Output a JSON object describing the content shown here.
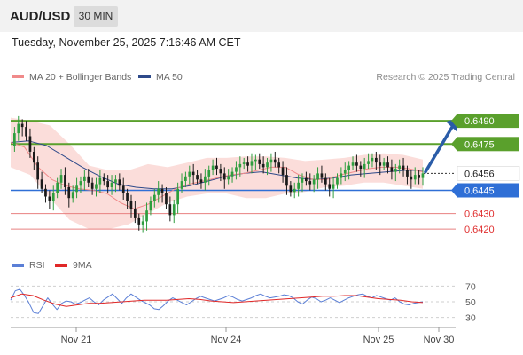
{
  "header": {
    "symbol": "AUD/USD",
    "timeframe": "30 MIN"
  },
  "datetime": "Tuesday, November 25, 2025 7:16:46 AM CET",
  "legend": {
    "ma20_label": "MA 20 + Bollinger Bands",
    "ma50_label": "MA 50",
    "rsi_label": "RSI",
    "rsi_ma_label": "9MA"
  },
  "credit": "Research © 2025 Trading Central",
  "colors": {
    "ma20": "#f08a8a",
    "ma50": "#2e4a8a",
    "bollinger_fill": "#fbd9d6",
    "resistance": "#5aa02c",
    "support": "#2f6fd6",
    "support_red": "#e88080",
    "bull": "#2e9e3e",
    "bear": "#1a1a1a",
    "arrow": "#2a5ca8",
    "rsi": "#5b7fd6",
    "rsi_ma": "#e02828"
  },
  "chart_data": [
    {
      "type": "candlestick",
      "title": "AUD/USD",
      "timeframe": "30 MIN",
      "ylim": [
        0.6412,
        0.6505
      ],
      "x_ticks": [
        "Nov 21",
        "Nov 24",
        "Nov 25",
        "Nov 30"
      ],
      "levels": [
        {
          "value": 0.649,
          "label": "0.6490",
          "kind": "resistance"
        },
        {
          "value": 0.6475,
          "label": "0.6475",
          "kind": "resistance"
        },
        {
          "value": 0.6456,
          "label": "0.6456",
          "kind": "last-price"
        },
        {
          "value": 0.6445,
          "label": "0.6445",
          "kind": "support"
        },
        {
          "value": 0.643,
          "label": "0.6430",
          "kind": "support-minor"
        },
        {
          "value": 0.642,
          "label": "0.6420",
          "kind": "support-minor"
        }
      ],
      "projection": {
        "from": 0.6457,
        "to": 0.649
      },
      "close_path": [
        0.6474,
        0.6482,
        0.6488,
        0.6486,
        0.648,
        0.647,
        0.6463,
        0.6452,
        0.6446,
        0.6441,
        0.6438,
        0.6443,
        0.645,
        0.6455,
        0.6447,
        0.644,
        0.6444,
        0.6448,
        0.6451,
        0.6454,
        0.645,
        0.6446,
        0.6449,
        0.6453,
        0.6451,
        0.6447,
        0.645,
        0.6452,
        0.6448,
        0.6443,
        0.6438,
        0.6433,
        0.6427,
        0.6423,
        0.6425,
        0.6432,
        0.6438,
        0.6442,
        0.6446,
        0.6443,
        0.6436,
        0.6429,
        0.6436,
        0.6446,
        0.6451,
        0.6454,
        0.6457,
        0.6455,
        0.6452,
        0.645,
        0.6454,
        0.6458,
        0.6461,
        0.6459,
        0.6456,
        0.6452,
        0.6454,
        0.6457,
        0.646,
        0.6462,
        0.6463,
        0.6461,
        0.6464,
        0.6465,
        0.6462,
        0.646,
        0.6463,
        0.6465,
        0.6463,
        0.646,
        0.6455,
        0.6448,
        0.6444,
        0.6446,
        0.645,
        0.6453,
        0.6451,
        0.6449,
        0.6452,
        0.6456,
        0.6453,
        0.6449,
        0.6446,
        0.6449,
        0.6453,
        0.6456,
        0.6458,
        0.6461,
        0.6463,
        0.6461,
        0.6459,
        0.6462,
        0.6464,
        0.6466,
        0.6463,
        0.6461,
        0.6463,
        0.646,
        0.6457,
        0.6459,
        0.6461,
        0.6458,
        0.6454,
        0.6452,
        0.6455,
        0.6453,
        0.6456
      ],
      "ma20": [
        0.6476,
        0.6473,
        0.646,
        0.6452,
        0.6448,
        0.6446,
        0.6445,
        0.6443,
        0.6437,
        0.6433,
        0.6436,
        0.6441,
        0.6446,
        0.6449,
        0.6451,
        0.6453,
        0.6455,
        0.6456,
        0.6458,
        0.646,
        0.646,
        0.6455,
        0.6452,
        0.6452,
        0.6455,
        0.6457,
        0.6459,
        0.646,
        0.646,
        0.6459,
        0.6457
      ],
      "ma50": [
        0.6476,
        0.6477,
        0.6474,
        0.6467,
        0.646,
        0.6454,
        0.6449,
        0.6447,
        0.6446,
        0.6446,
        0.6448,
        0.6451,
        0.6454,
        0.6456,
        0.6457,
        0.6455,
        0.6453,
        0.6452,
        0.6453,
        0.6455,
        0.6456,
        0.6457,
        0.6458,
        0.6458
      ],
      "bollinger_upper": [
        0.6492,
        0.649,
        0.6487,
        0.6475,
        0.6461,
        0.6458,
        0.6458,
        0.6462,
        0.646,
        0.6463,
        0.6466,
        0.6466,
        0.6467,
        0.6467,
        0.6466,
        0.6464,
        0.6465,
        0.6466,
        0.6468,
        0.6469,
        0.6468,
        0.6465
      ],
      "bollinger_lower": [
        0.646,
        0.6455,
        0.644,
        0.6426,
        0.642,
        0.642,
        0.6423,
        0.643,
        0.6437,
        0.6441,
        0.6443,
        0.6443,
        0.644,
        0.644,
        0.6443,
        0.6444,
        0.6447,
        0.6448,
        0.645,
        0.645,
        0.6448,
        0.6446
      ]
    },
    {
      "type": "line",
      "title": "RSI",
      "ylim": [
        25,
        75
      ],
      "y_ticks": [
        30,
        50,
        70
      ],
      "series": [
        {
          "name": "RSI",
          "values": [
            52,
            64,
            66,
            58,
            48,
            36,
            35,
            45,
            55,
            47,
            40,
            48,
            51,
            50,
            47,
            49,
            52,
            55,
            50,
            46,
            52,
            56,
            60,
            54,
            48,
            55,
            60,
            56,
            52,
            49,
            46,
            41,
            40,
            45,
            51,
            55,
            52,
            49,
            46,
            50,
            54,
            57,
            55,
            53,
            51,
            53,
            55,
            58,
            56,
            53,
            51,
            53,
            55,
            58,
            60,
            57,
            55,
            56,
            57,
            59,
            58,
            55,
            50,
            47,
            52,
            56,
            54,
            50,
            52,
            55,
            52,
            49,
            52,
            55,
            57,
            59,
            60,
            57,
            55,
            58,
            56,
            54,
            52,
            55,
            50,
            47,
            46,
            48,
            49,
            50
          ]
        },
        {
          "name": "9MA",
          "values": [
            55,
            60,
            58,
            52,
            47,
            44,
            46,
            48,
            48,
            49,
            50,
            51,
            52,
            52,
            52,
            53,
            54,
            53,
            51,
            50,
            49,
            50,
            51,
            52,
            53,
            54,
            55,
            56,
            57,
            57,
            58,
            58,
            56,
            54,
            53,
            52,
            50,
            49
          ]
        }
      ]
    }
  ]
}
